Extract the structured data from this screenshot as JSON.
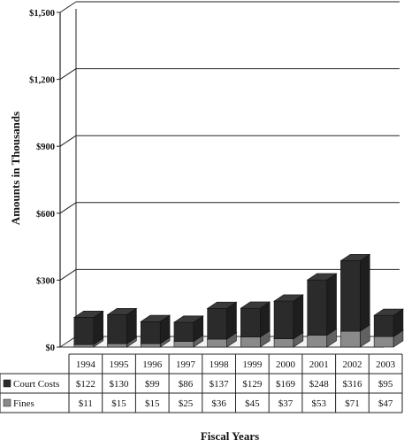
{
  "chart_data": {
    "type": "bar",
    "stacked": true,
    "three_d": true,
    "categories": [
      "1994",
      "1995",
      "1996",
      "1997",
      "1998",
      "1999",
      "2000",
      "2001",
      "2002",
      "2003"
    ],
    "series": [
      {
        "name": "Court Costs",
        "values": [
          122,
          130,
          99,
          86,
          137,
          129,
          169,
          248,
          316,
          95
        ],
        "labels": [
          "$122",
          "$130",
          "$99",
          "$86",
          "$137",
          "$129",
          "$169",
          "$248",
          "$316",
          "$95"
        ],
        "color": "#2b2b2b"
      },
      {
        "name": "Fines",
        "values": [
          11,
          15,
          15,
          25,
          36,
          45,
          37,
          53,
          71,
          47
        ],
        "labels": [
          "$11",
          "$15",
          "$15",
          "$25",
          "$36",
          "$45",
          "$37",
          "$53",
          "$71",
          "$47"
        ],
        "color": "#8a8a8a"
      }
    ],
    "yticks": [
      0,
      300,
      600,
      900,
      1200,
      1500
    ],
    "ytick_labels": [
      "$0",
      "$300",
      "$600",
      "$900",
      "$1,200",
      "$1,500"
    ],
    "ylim": [
      0,
      1500
    ],
    "ylabel": "Amounts in Thousands",
    "xlabel": "Fiscal Years",
    "grid": true,
    "legend": "data-table"
  }
}
